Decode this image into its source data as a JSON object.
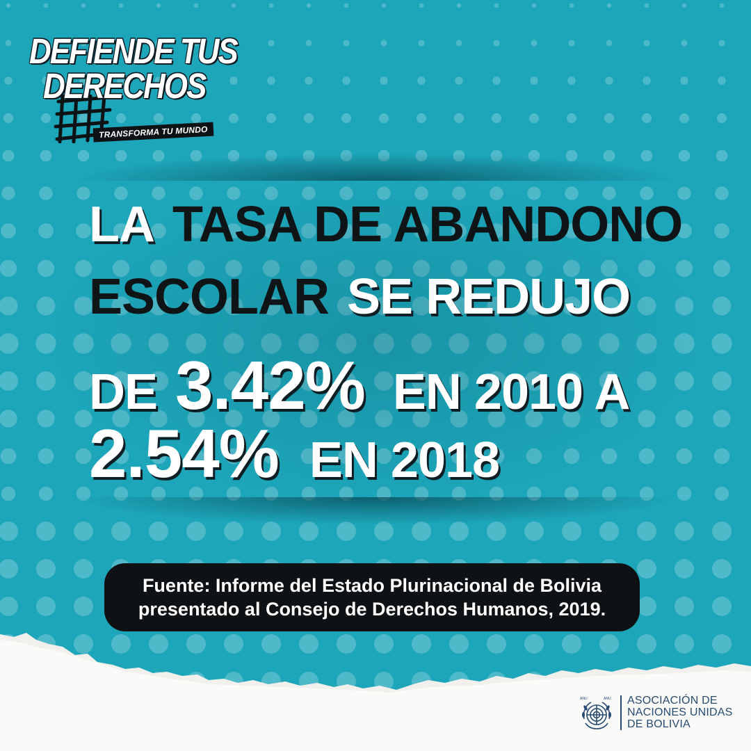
{
  "logo": {
    "line1": "DEFIENDE TUS",
    "line2": "DERECHOS",
    "tagline": "TRANSFORMA TU MUNDO"
  },
  "headline": {
    "line1_a": "LA",
    "line1_b": "TASA DE ABANDONO",
    "line2_a": "ESCOLAR",
    "line2_b": "SE REDUJO",
    "line3_a": "DE",
    "line3_value": "3.42%",
    "line3_b": "EN 2010 A",
    "line4_value": "2.54%",
    "line4_b": "EN 2018"
  },
  "source": {
    "line1": "Fuente: Informe del Estado Plurinacional de Bolivia",
    "line2": "presentado al Consejo de Derechos Humanos, 2019."
  },
  "org": {
    "line1": "ASOCIACIÓN DE",
    "line2": "NACIONES UNIDAS",
    "line3": "DE BOLIVIA"
  },
  "colors": {
    "background": "#1da6ba",
    "dark": "#0f1416",
    "white": "#ffffff",
    "org_blue": "#264a72"
  }
}
